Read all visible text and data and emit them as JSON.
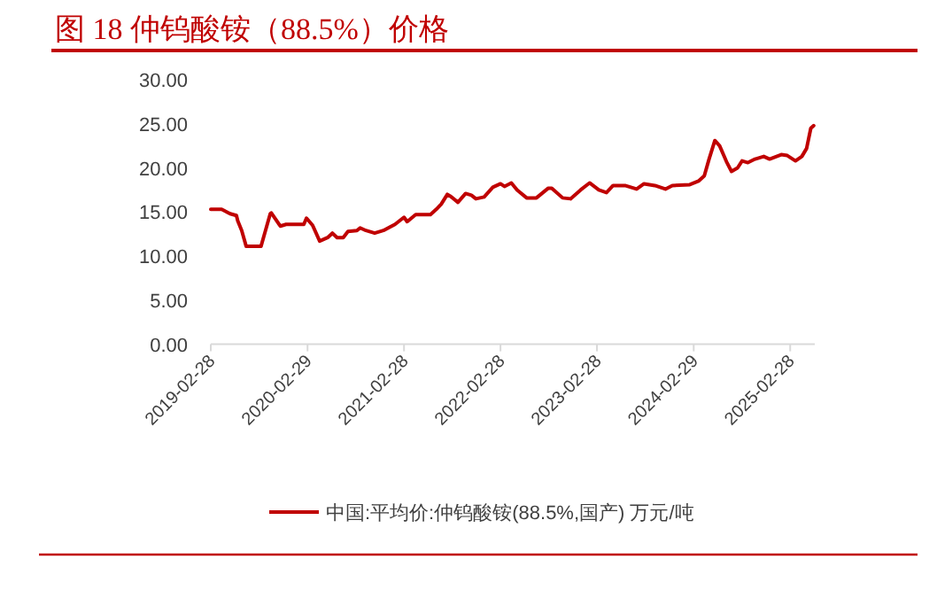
{
  "chart_data": {
    "type": "line",
    "title": "图 18 仲钨酸铵（88.5%）价格",
    "legend": "bottom",
    "grid": false,
    "marker": "none",
    "line_style": "solid",
    "x": [
      "2019-02-28",
      "2019-04-10",
      "2019-05-12",
      "2019-06-05",
      "2019-06-10",
      "2019-06-25",
      "2019-07-12",
      "2019-07-30",
      "2019-09-06",
      "2019-09-23",
      "2019-10-11",
      "2019-10-15",
      "2019-11-18",
      "2019-12-10",
      "2020-02-15",
      "2020-02-25",
      "2020-03-19",
      "2020-04-15",
      "2020-05-15",
      "2020-06-02",
      "2020-06-20",
      "2020-07-13",
      "2020-07-31",
      "2020-09-03",
      "2020-09-15",
      "2020-10-07",
      "2020-11-09",
      "2020-12-12",
      "2021-01-25",
      "2021-02-28",
      "2021-03-12",
      "2021-04-13",
      "2021-06-08",
      "2021-06-30",
      "2021-07-19",
      "2021-08-11",
      "2021-08-22",
      "2021-09-20",
      "2021-10-19",
      "2021-11-10",
      "2021-11-27",
      "2021-12-28",
      "2022-01-30",
      "2022-02-28",
      "2022-03-15",
      "2022-04-10",
      "2022-05-02",
      "2022-06-07",
      "2022-07-14",
      "2022-08-28",
      "2022-09-10",
      "2022-10-21",
      "2022-11-20",
      "2022-12-28",
      "2023-01-31",
      "2023-03-07",
      "2023-04-05",
      "2023-04-30",
      "2023-06-14",
      "2023-07-28",
      "2023-08-25",
      "2023-10-05",
      "2023-11-14",
      "2023-12-10",
      "2024-02-14",
      "2024-03-18",
      "2024-04-09",
      "2024-04-27",
      "2024-05-19",
      "2024-06-06",
      "2024-07-02",
      "2024-07-21",
      "2024-08-13",
      "2024-08-30",
      "2024-09-21",
      "2024-10-18",
      "2024-11-20",
      "2024-12-12",
      "2025-01-25",
      "2025-02-17",
      "2025-03-20",
      "2025-04-13",
      "2025-05-01",
      "2025-05-17",
      "2025-05-28"
    ],
    "series": [
      {
        "name": "中国:平均价:仲钨酸铵(88.5%,国产) 万元/吨",
        "color": "#c00000",
        "values": [
          15.3,
          15.3,
          14.8,
          14.6,
          14.0,
          12.9,
          11.1,
          11.1,
          11.1,
          12.9,
          14.8,
          14.9,
          13.4,
          13.6,
          13.6,
          14.3,
          13.5,
          11.7,
          12.1,
          12.6,
          12.1,
          12.1,
          12.8,
          12.9,
          13.2,
          12.9,
          12.6,
          12.9,
          13.6,
          14.4,
          13.9,
          14.7,
          14.7,
          15.3,
          15.9,
          17.0,
          16.8,
          16.1,
          17.1,
          16.9,
          16.5,
          16.7,
          17.8,
          18.2,
          17.9,
          18.3,
          17.5,
          16.6,
          16.6,
          17.7,
          17.7,
          16.6,
          16.5,
          17.5,
          18.3,
          17.5,
          17.2,
          18.0,
          18.0,
          17.6,
          18.2,
          18.0,
          17.6,
          18.0,
          18.1,
          18.5,
          19.1,
          21.0,
          23.1,
          22.5,
          20.7,
          19.6,
          20.0,
          20.8,
          20.6,
          21.0,
          21.3,
          21.0,
          21.5,
          21.4,
          20.8,
          21.3,
          22.2,
          24.5,
          24.8
        ]
      }
    ],
    "xlim": [
      "2019-02-28",
      "2025-06-01"
    ],
    "xticks": [
      "2019-02-28",
      "2020-02-29",
      "2021-02-28",
      "2022-02-28",
      "2023-02-28",
      "2024-02-29",
      "2025-02-28"
    ],
    "ylim": [
      0,
      30
    ],
    "yticks": [
      {
        "value": 0,
        "label": "0.00"
      },
      {
        "value": 5,
        "label": "5.00"
      },
      {
        "value": 10,
        "label": "10.00"
      },
      {
        "value": 15,
        "label": "15.00"
      },
      {
        "value": 20,
        "label": "20.00"
      },
      {
        "value": 25,
        "label": "25.00"
      },
      {
        "value": 30,
        "label": "30.00"
      }
    ]
  }
}
